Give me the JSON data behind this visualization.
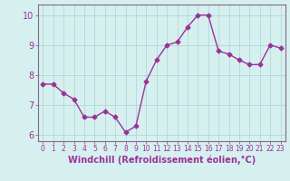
{
  "x": [
    0,
    1,
    2,
    3,
    4,
    5,
    6,
    7,
    8,
    9,
    10,
    11,
    12,
    13,
    14,
    15,
    16,
    17,
    18,
    19,
    20,
    21,
    22,
    23
  ],
  "y": [
    7.7,
    7.7,
    7.4,
    7.2,
    6.6,
    6.6,
    6.8,
    6.6,
    6.1,
    6.3,
    7.8,
    8.5,
    9.0,
    9.1,
    9.6,
    10.0,
    10.0,
    8.8,
    8.7,
    8.5,
    8.35,
    8.35,
    9.0,
    8.9
  ],
  "line_color": "#993399",
  "marker": "D",
  "marker_size": 2.5,
  "xlabel": "Windchill (Refroidissement éolien,°C)",
  "ylabel": "",
  "ylim": [
    5.8,
    10.35
  ],
  "xlim": [
    -0.5,
    23.5
  ],
  "yticks": [
    6,
    7,
    8,
    9,
    10
  ],
  "xticks": [
    0,
    1,
    2,
    3,
    4,
    5,
    6,
    7,
    8,
    9,
    10,
    11,
    12,
    13,
    14,
    15,
    16,
    17,
    18,
    19,
    20,
    21,
    22,
    23
  ],
  "bg_color": "#d6f0f0",
  "grid_color": "#b0d8d8",
  "spine_color": "#886688",
  "tick_label_color": "#993399",
  "xlabel_color": "#993399",
  "xlabel_fontsize": 7.0,
  "ytick_fontsize": 7.0,
  "xtick_fontsize": 5.5
}
